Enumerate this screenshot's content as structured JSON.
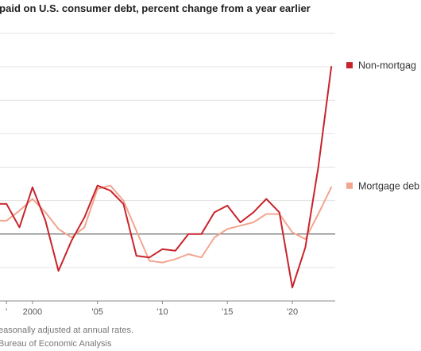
{
  "title": "st paid on U.S. consumer debt, percent change from a year earlier",
  "notes": [
    "easonally adjusted at annual rates.",
    " Bureau of Economic Analysis"
  ],
  "chart_data": {
    "type": "line",
    "title": "st paid on U.S. consumer debt, percent change from a year earlier",
    "xlabel": "",
    "ylabel": "",
    "x_tick_labels": [
      {
        "x": 1998,
        "label": "'"
      },
      {
        "x": 2000,
        "label": "2000"
      },
      {
        "x": 2005,
        "label": "'05"
      },
      {
        "x": 2010,
        "label": "'10"
      },
      {
        "x": 2015,
        "label": "'15"
      },
      {
        "x": 2020,
        "label": "'20"
      }
    ],
    "xlim": [
      1997.5,
      2023.3
    ],
    "ylim": [
      -20,
      60
    ],
    "yticks": [
      -20,
      -10,
      0,
      10,
      20,
      30,
      40,
      50,
      60
    ],
    "zero_line": 0,
    "grid": true,
    "legend": "right",
    "series": [
      {
        "name": "Non-mortgag",
        "color": "#c8232c",
        "x": [
          1997,
          1998,
          1999,
          2000,
          2001,
          2002,
          2003,
          2004,
          2005,
          2006,
          2007,
          2008,
          2009,
          2010,
          2011,
          2012,
          2013,
          2014,
          2015,
          2016,
          2017,
          2018,
          2019,
          2020,
          2021,
          2022,
          2023
        ],
        "values": [
          9,
          9,
          2,
          14,
          4,
          -11,
          -2,
          5,
          14.5,
          13,
          9,
          -6.5,
          -7,
          -4.5,
          -5,
          0,
          0,
          6.5,
          8.5,
          3.5,
          6.5,
          10.5,
          6.5,
          -16,
          -4,
          20,
          50
        ]
      },
      {
        "name": "Mortgage deb",
        "color": "#f2a58f",
        "x": [
          1997,
          1998,
          1999,
          2000,
          2001,
          2002,
          2003,
          2004,
          2005,
          2006,
          2007,
          2008,
          2009,
          2010,
          2011,
          2012,
          2013,
          2014,
          2015,
          2016,
          2017,
          2018,
          2019,
          2020,
          2021,
          2022,
          2023
        ],
        "values": [
          4,
          4,
          7,
          10.5,
          6.5,
          1.5,
          -1,
          2,
          13.5,
          14.5,
          10,
          1,
          -8,
          -8.5,
          -7.5,
          -6,
          -7,
          -1,
          1.5,
          2.5,
          3.5,
          6,
          6,
          0.5,
          -1.5,
          6,
          14
        ]
      }
    ]
  }
}
